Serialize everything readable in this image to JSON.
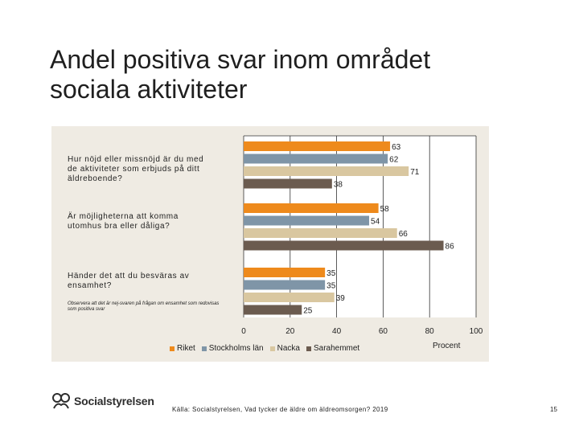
{
  "slide": {
    "title_line1": "Andel positiva svar inom området",
    "title_line2": "sociala aktiviteter"
  },
  "chart_data": {
    "type": "bar",
    "orientation": "horizontal",
    "title": "",
    "xlabel": "Procent",
    "ylabel": "",
    "xlim": [
      0,
      100
    ],
    "x_ticks": [
      "0",
      "20",
      "40",
      "60",
      "80",
      "100"
    ],
    "grid": true,
    "legend_position": "bottom",
    "categories": [
      "Hur nöjd eller missnöjd är du med de aktiviteter som erbjuds på ditt äldreboende?",
      "Är möjligheterna att komma utomhus bra eller dåliga?",
      "Händer det att du besväras av ensamhet?"
    ],
    "category_note": "Observera att det är nej-svaren på frågan om ensamhet som redovisas som positiva svar",
    "series": [
      {
        "name": "Riket",
        "values": [
          63,
          58,
          35
        ]
      },
      {
        "name": "Stockholms län",
        "values": [
          62,
          54,
          35
        ]
      },
      {
        "name": "Nacka",
        "values": [
          71,
          66,
          39
        ]
      },
      {
        "name": "Sarahemmet",
        "values": [
          38,
          86,
          25
        ]
      }
    ],
    "colors": [
      "#ee8a1c",
      "#7f95a7",
      "#d9c7a0",
      "#6b5b4f"
    ]
  },
  "footer": {
    "logo_text": "Socialstyrelsen",
    "source": "Källa: Socialstyrelsen, Vad tycker de äldre om äldreomsorgen? 2019",
    "page_number": "15"
  }
}
